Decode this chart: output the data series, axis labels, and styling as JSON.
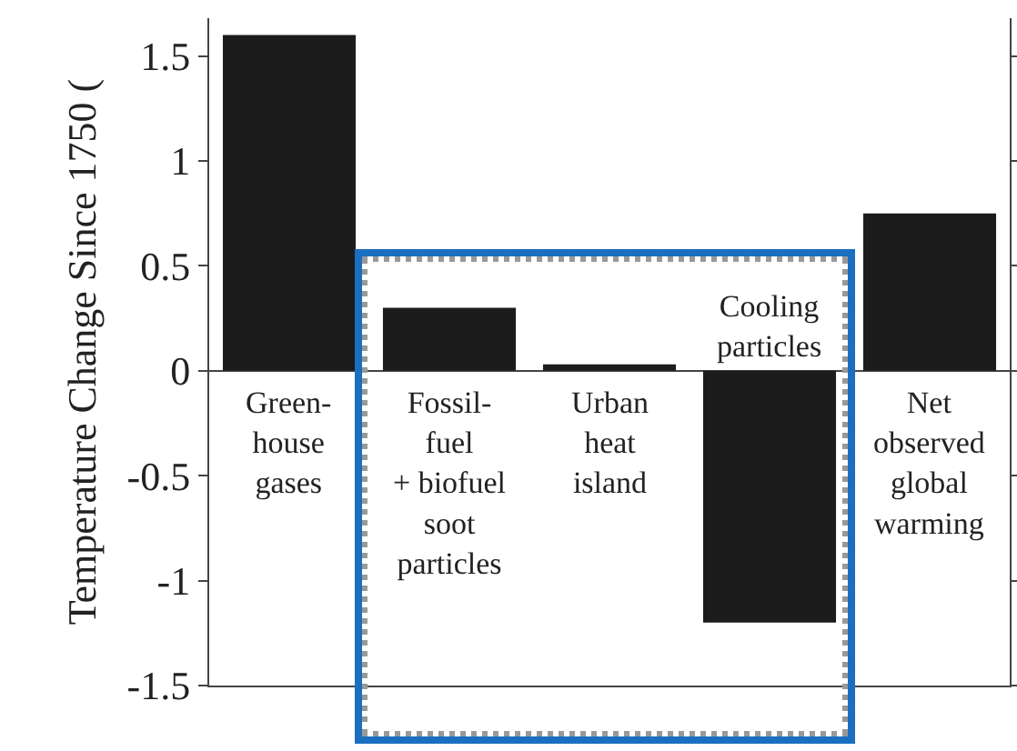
{
  "chart_data": {
    "type": "bar",
    "ylabel": "Temperature Change Since 1750 (",
    "categories": [
      "Green-\nhouse\ngases",
      "Fossil-\nfuel\n+ biofuel\nsoot\nparticles",
      "Urban\nheat\nisland",
      "Cooling\nparticles",
      "Net\nobserved\nglobal\nwarming"
    ],
    "values": [
      1.6,
      0.3,
      0.03,
      -1.2,
      0.75
    ],
    "color": "#1c1c1c",
    "ylim": [
      -1.5,
      1.68
    ],
    "yticks": [
      -1.5,
      -1,
      -0.5,
      0,
      0.5,
      1,
      1.5
    ],
    "grid": false
  }
}
